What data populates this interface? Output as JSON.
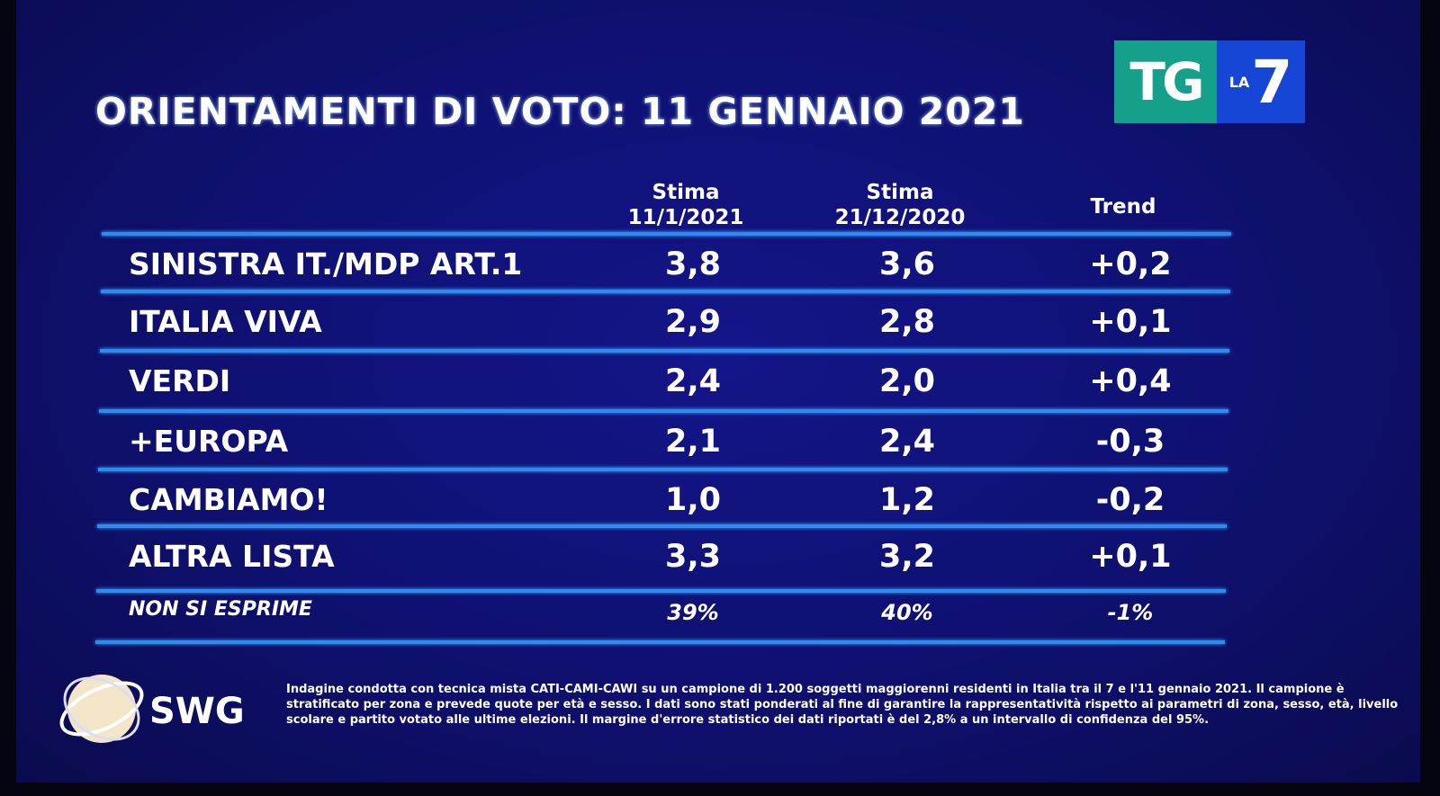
{
  "title": "ORIENTAMENTI DI VOTO: 11 GENNAIO 2021",
  "logo": {
    "brand": "TG LA7",
    "tg": "TG",
    "la": "LA",
    "seven": "7"
  },
  "sponsor": {
    "name": "SWG"
  },
  "chart_data": {
    "type": "table",
    "title": "ORIENTAMENTI DI VOTO: 11 GENNAIO 2021",
    "columns": [
      {
        "line1": "Stima",
        "line2": "11/1/2021"
      },
      {
        "line1": "Stima",
        "line2": "21/12/2020"
      },
      {
        "line1": "Trend",
        "line2": ""
      }
    ],
    "rows": [
      {
        "label": "SINISTRA IT./MDP ART.1",
        "v1": "3,8",
        "v2": "3,6",
        "trend": "+0,2"
      },
      {
        "label": "ITALIA VIVA",
        "v1": "2,9",
        "v2": "2,8",
        "trend": "+0,1"
      },
      {
        "label": "VERDI",
        "v1": "2,4",
        "v2": "2,0",
        "trend": "+0,4"
      },
      {
        "label": "+EUROPA",
        "v1": "2,1",
        "v2": "2,4",
        "trend": "-0,3"
      },
      {
        "label": "CAMBIAMO!",
        "v1": "1,0",
        "v2": "1,2",
        "trend": "-0,2"
      },
      {
        "label": "ALTRA LISTA",
        "v1": "3,3",
        "v2": "3,2",
        "trend": "+0,1"
      },
      {
        "label": "NON SI ESPRIME",
        "v1": "39%",
        "v2": "40%",
        "trend": "-1%"
      }
    ]
  },
  "footnote": "Indagine condotta con tecnica mista CATI-CAMI-CAWI su un campione di 1.200 soggetti maggiorenni residenti in Italia tra il 7 e l'11 gennaio 2021. Il campione è stratificato per zona e prevede quote per età e sesso. I dati sono stati ponderati al fine di garantire la rappresentatività rispetto ai parametri di zona, sesso, età, livello scolare e partito votato alle ultime elezioni. Il margine d'errore statistico dei dati riportati è del 2,8% a un intervallo di confidenza del 95%."
}
